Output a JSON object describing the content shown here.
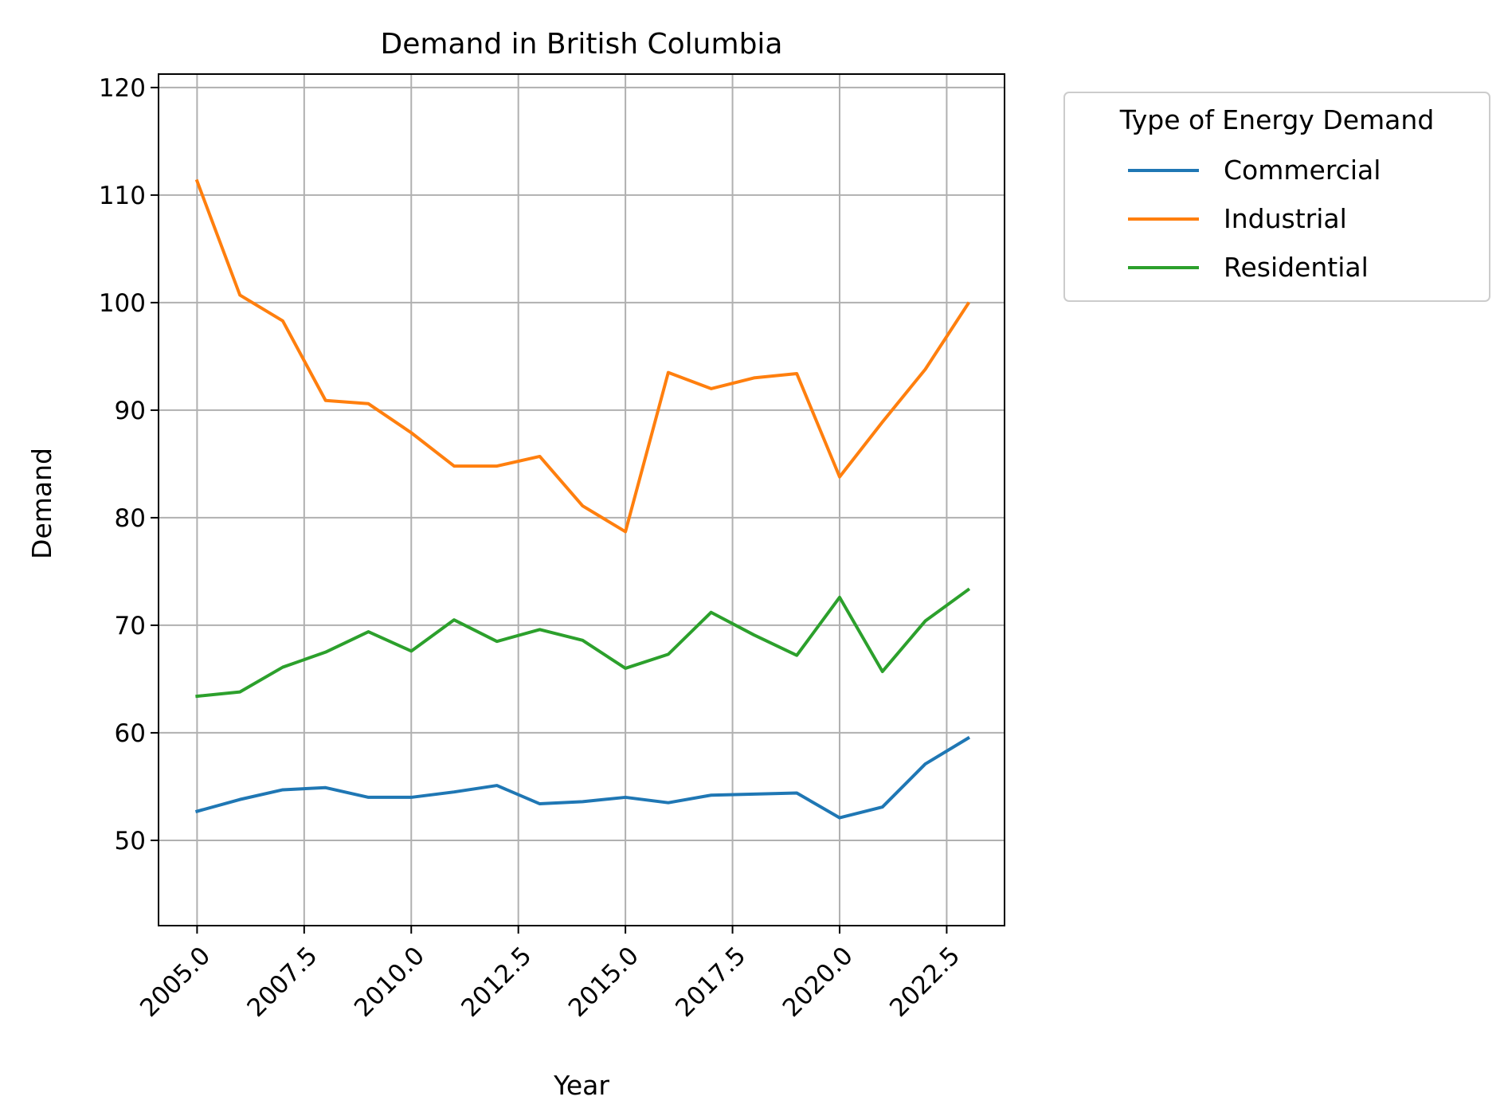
{
  "chart_data": {
    "type": "line",
    "title": "Demand in British Columbia",
    "xlabel": "Year",
    "ylabel": "Demand",
    "xlim": [
      2004.1,
      2023.85
    ],
    "ylim": [
      42.07,
      121.25
    ],
    "xticks": [
      2005.0,
      2007.5,
      2010.0,
      2012.5,
      2015.0,
      2017.5,
      2020.0,
      2022.5
    ],
    "xtick_labels": [
      "2005.0",
      "2007.5",
      "2010.0",
      "2012.5",
      "2015.0",
      "2017.5",
      "2020.0",
      "2022.5"
    ],
    "yticks": [
      50,
      60,
      70,
      80,
      90,
      100,
      110,
      120
    ],
    "ytick_labels": [
      "50",
      "60",
      "70",
      "80",
      "90",
      "100",
      "110",
      "120"
    ],
    "grid": true,
    "legend": {
      "title": "Type of Energy Demand",
      "placement": "outside-right-top"
    },
    "x": [
      2005,
      2006,
      2007,
      2008,
      2009,
      2010,
      2011,
      2012,
      2013,
      2014,
      2015,
      2016,
      2017,
      2018,
      2019,
      2020,
      2021,
      2022,
      2023
    ],
    "series": [
      {
        "name": "Commercial",
        "color": "#1f77b4",
        "values": [
          52.7,
          53.8,
          54.7,
          54.9,
          54.0,
          54.0,
          54.5,
          55.1,
          53.4,
          53.6,
          54.0,
          53.5,
          54.2,
          54.3,
          54.4,
          52.1,
          53.1,
          57.1,
          59.5
        ]
      },
      {
        "name": "Industrial",
        "color": "#ff7f0e",
        "values": [
          111.3,
          100.7,
          98.3,
          90.9,
          90.6,
          87.9,
          84.8,
          84.8,
          85.7,
          81.1,
          78.7,
          93.5,
          92.0,
          93.0,
          93.4,
          83.8,
          88.9,
          93.8,
          99.9
        ]
      },
      {
        "name": "Residential",
        "color": "#2ca02c",
        "values": [
          63.4,
          63.8,
          66.1,
          67.5,
          69.4,
          67.6,
          70.5,
          68.5,
          69.6,
          68.6,
          66.0,
          67.3,
          71.2,
          69.1,
          67.2,
          72.6,
          65.7,
          70.4,
          73.3
        ]
      }
    ]
  }
}
